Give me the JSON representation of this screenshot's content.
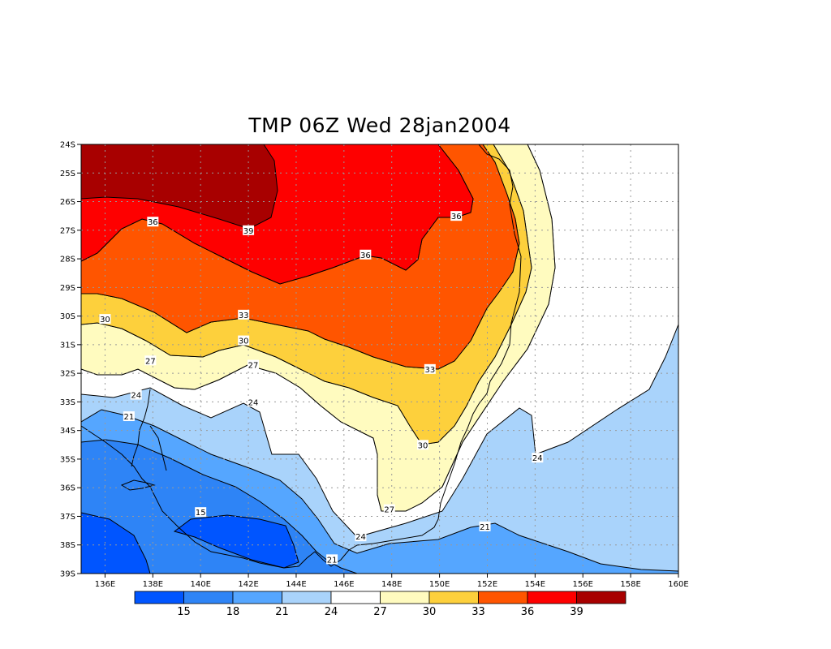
{
  "chart_data": {
    "type": "heatmap",
    "title": "TMP 06Z Wed 28jan2004",
    "variable": "TMP",
    "xlim": [
      135,
      160
    ],
    "ylim": [
      -39,
      -24
    ],
    "x_ticks": [
      136,
      138,
      140,
      142,
      144,
      146,
      148,
      150,
      152,
      154,
      156,
      158,
      160
    ],
    "x_tick_labels": [
      "136E",
      "138E",
      "140E",
      "142E",
      "144E",
      "146E",
      "148E",
      "150E",
      "152E",
      "154E",
      "156E",
      "158E",
      "160E"
    ],
    "y_ticks": [
      -24,
      -25,
      -26,
      -27,
      -28,
      -29,
      -30,
      -31,
      -32,
      -33,
      -34,
      -35,
      -36,
      -37,
      -38,
      -39
    ],
    "y_tick_labels": [
      "24S",
      "25S",
      "26S",
      "27S",
      "28S",
      "29S",
      "30S",
      "31S",
      "32S",
      "33S",
      "34S",
      "35S",
      "36S",
      "37S",
      "38S",
      "39S"
    ],
    "grid": true,
    "colorbar": {
      "levels": [
        15,
        18,
        21,
        24,
        27,
        30,
        33,
        36,
        39
      ],
      "labels": [
        "15",
        "18",
        "21",
        "24",
        "27",
        "30",
        "33",
        "36",
        "39"
      ],
      "colors": [
        "#0055ff",
        "#2e84f6",
        "#55a6ff",
        "#a9d3fb",
        "#ffffff",
        "#fffbbf",
        "#fdd03c",
        "#ff5500",
        "#fe0000",
        "#a80000"
      ]
    },
    "contour_labels": [
      {
        "value": "36",
        "lon": 138.0,
        "lat": -26.7
      },
      {
        "value": "39",
        "lon": 142.0,
        "lat": -27.0
      },
      {
        "value": "36",
        "lon": 146.9,
        "lat": -27.85
      },
      {
        "value": "36",
        "lon": 150.7,
        "lat": -26.5
      },
      {
        "value": "30",
        "lon": 136.0,
        "lat": -30.1
      },
      {
        "value": "33",
        "lon": 141.8,
        "lat": -29.95
      },
      {
        "value": "30",
        "lon": 141.8,
        "lat": -30.85
      },
      {
        "value": "33",
        "lon": 149.6,
        "lat": -31.85
      },
      {
        "value": "27",
        "lon": 137.9,
        "lat": -31.55
      },
      {
        "value": "27",
        "lon": 142.2,
        "lat": -31.7
      },
      {
        "value": "24",
        "lon": 137.3,
        "lat": -32.75
      },
      {
        "value": "24",
        "lon": 142.2,
        "lat": -33.0
      },
      {
        "value": "21",
        "lon": 137.0,
        "lat": -33.5
      },
      {
        "value": "30",
        "lon": 149.3,
        "lat": -34.5
      },
      {
        "value": "27",
        "lon": 147.9,
        "lat": -36.75
      },
      {
        "value": "24",
        "lon": 154.1,
        "lat": -34.95
      },
      {
        "value": "21",
        "lon": 151.9,
        "lat": -37.35
      },
      {
        "value": "24",
        "lon": 146.7,
        "lat": -37.7
      },
      {
        "value": "21",
        "lon": 145.5,
        "lat": -38.5
      },
      {
        "value": "15",
        "lon": 140.0,
        "lat": -36.85
      }
    ]
  }
}
